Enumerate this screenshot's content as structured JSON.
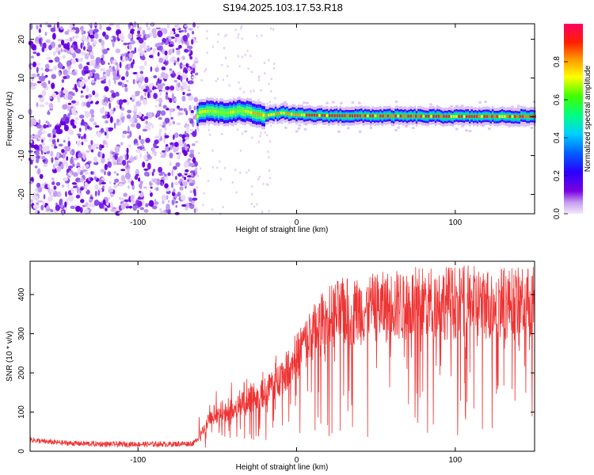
{
  "title": "S194.2025.103.17.53.R18",
  "chart_data": [
    {
      "type": "heatmap",
      "xlabel": "Height of straight line (km)",
      "ylabel": "Frequency (Hz)",
      "xlim": [
        -168,
        150
      ],
      "ylim": [
        -25,
        24
      ],
      "x_ticks": [
        -100,
        0,
        100
      ],
      "y_ticks": [
        -20,
        -10,
        0,
        10,
        20
      ],
      "colorbar": {
        "label": "Normalized spectral amplitude",
        "range": [
          0,
          1
        ],
        "ticks": [
          "0.0",
          "0.2",
          "0.4",
          "0.6",
          "0.8"
        ],
        "colors": [
          "#f2e6f7",
          "#7a00e0",
          "#0000ff",
          "#00c8ff",
          "#00ff40",
          "#ffff00",
          "#ff7000",
          "#ff0000",
          "#ff0060"
        ]
      },
      "noise_region_x": [
        -168,
        -63
      ],
      "signal_region_x": [
        -63,
        150
      ],
      "signal_track": [
        [
          -62,
          1.2
        ],
        [
          -55,
          1.5
        ],
        [
          -45,
          1.0
        ],
        [
          -35,
          1.6
        ],
        [
          -28,
          1.0
        ],
        [
          -20,
          0.3
        ],
        [
          -10,
          1.0
        ],
        [
          0,
          0.5
        ],
        [
          20,
          0.3
        ],
        [
          60,
          0.2
        ],
        [
          100,
          0.1
        ],
        [
          150,
          0.1
        ]
      ]
    },
    {
      "type": "line",
      "xlabel": "Height of straight line (km)",
      "ylabel": "SNR (10 * v/v)",
      "xlim": [
        -168,
        150
      ],
      "ylim": [
        0,
        485
      ],
      "x_ticks": [
        -100,
        0,
        100
      ],
      "y_ticks": [
        0,
        100,
        200,
        300,
        400
      ],
      "color": "#ee3333",
      "series": [
        {
          "x": [
            -168,
            -160,
            -150,
            -140,
            -120,
            -100,
            -80,
            -65,
            -60,
            -55,
            -50,
            -45,
            -40,
            -35,
            -30,
            -25,
            -20,
            -15,
            -10,
            -5,
            0,
            5,
            10,
            15,
            20,
            25,
            30,
            40,
            50,
            60,
            70,
            80,
            90,
            100,
            110,
            120,
            130,
            140,
            150
          ],
          "y": [
            30,
            25,
            22,
            20,
            18,
            18,
            18,
            20,
            45,
            80,
            90,
            100,
            110,
            120,
            130,
            140,
            150,
            170,
            190,
            210,
            240,
            270,
            300,
            320,
            340,
            350,
            355,
            360,
            365,
            370,
            375,
            380,
            380,
            380,
            380,
            378,
            378,
            375,
            380
          ]
        }
      ]
    }
  ]
}
